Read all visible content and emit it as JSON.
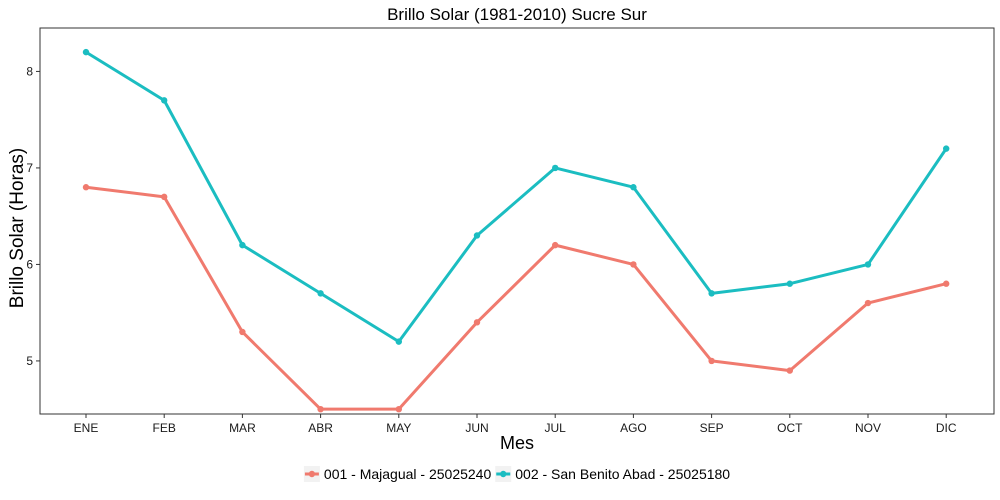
{
  "chart_data": {
    "type": "line",
    "title": "Brillo Solar (1981-2010)  Sucre Sur",
    "xlabel": "Mes",
    "ylabel": "Brillo Solar (Horas)",
    "categories": [
      "ENE",
      "FEB",
      "MAR",
      "ABR",
      "MAY",
      "JUN",
      "JUL",
      "AGO",
      "SEP",
      "OCT",
      "NOV",
      "DIC"
    ],
    "yticks": [
      5,
      6,
      7,
      8
    ],
    "ylim": [
      4.45,
      8.45
    ],
    "grid": false,
    "legend_position": "bottom",
    "series": [
      {
        "name": "001 - Majagual - 25025240",
        "color": "#F07A6E",
        "values": [
          6.8,
          6.7,
          5.3,
          4.5,
          4.5,
          5.4,
          6.2,
          6.0,
          5.0,
          4.9,
          5.6,
          5.8
        ]
      },
      {
        "name": "002 - San Benito Abad - 25025180",
        "color": "#1BBDC1",
        "values": [
          8.2,
          7.7,
          6.2,
          5.7,
          5.2,
          6.3,
          7.0,
          6.8,
          5.7,
          5.8,
          6.0,
          7.2
        ]
      }
    ]
  }
}
